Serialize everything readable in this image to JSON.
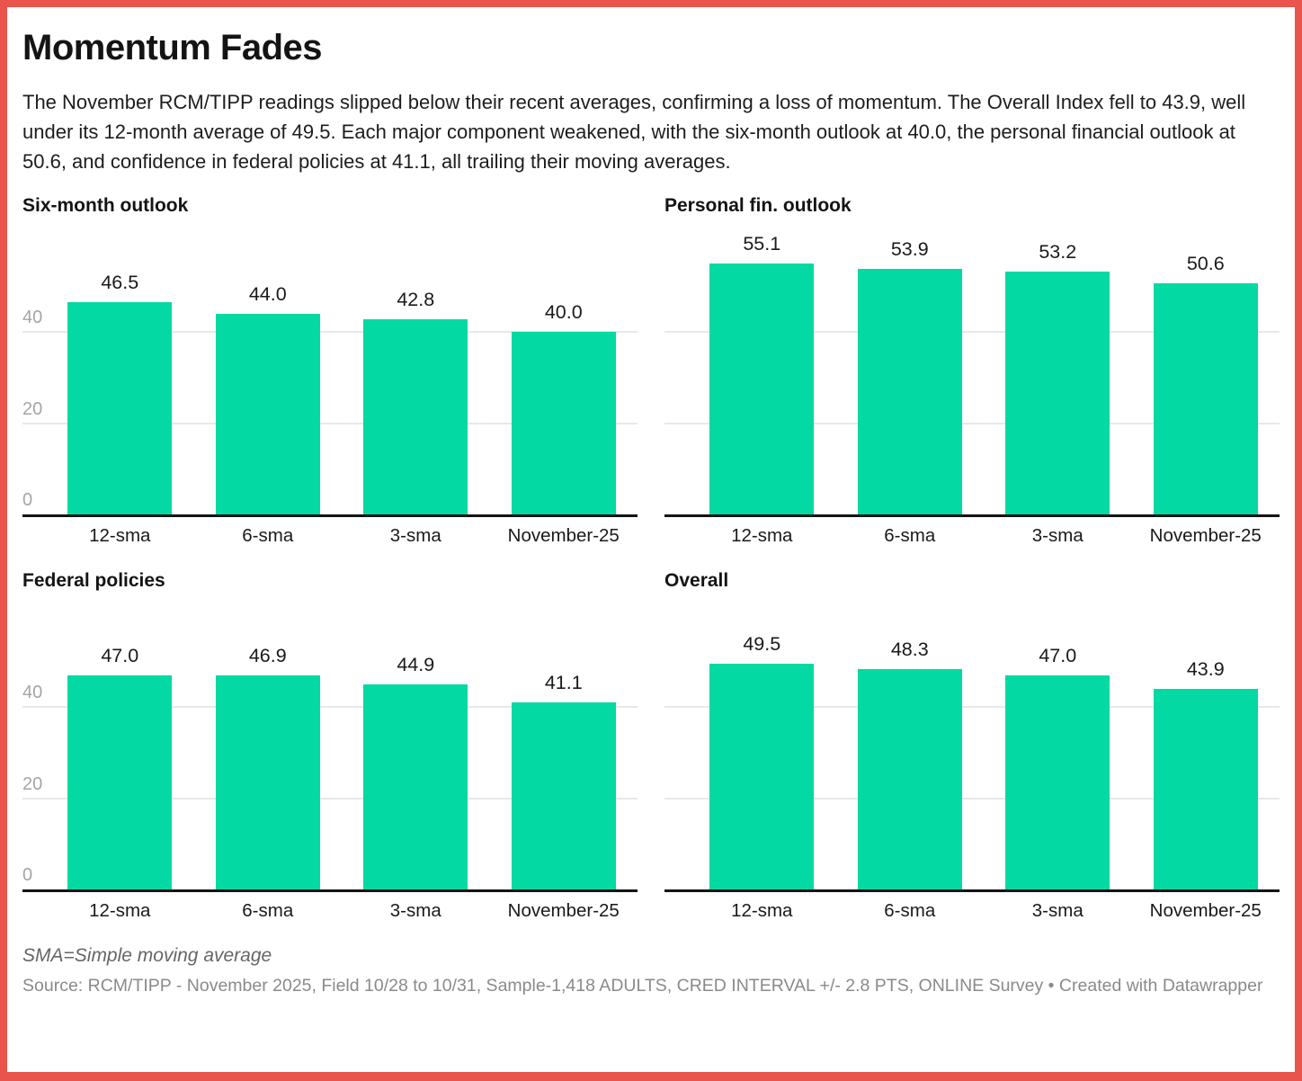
{
  "header": {
    "title": "Momentum Fades",
    "description": "The November RCM/TIPP readings slipped below their recent averages, confirming a loss of momentum. The Overall Index fell to 43.9, well under its 12-month average of 49.5. Each major component weakened, with the six-month outlook at 40.0, the personal financial outlook at 50.6, and confidence in federal policies at 41.1, all trailing their moving averages."
  },
  "chart_data": [
    {
      "type": "bar",
      "title": "Six-month outlook",
      "categories": [
        "12-sma",
        "6-sma",
        "3-sma",
        "November-25"
      ],
      "values": [
        46.5,
        44.0,
        42.8,
        40.0
      ],
      "labels": [
        "46.5",
        "44.0",
        "42.8",
        "40.0"
      ],
      "ylim": [
        0,
        63.5
      ],
      "yticks": [
        0,
        20,
        40
      ],
      "show_y_axis_labels": true,
      "grid": "horizontal",
      "legend": "none"
    },
    {
      "type": "bar",
      "title": "Personal fin. outlook",
      "categories": [
        "12-sma",
        "6-sma",
        "3-sma",
        "November-25"
      ],
      "values": [
        55.1,
        53.9,
        53.2,
        50.6
      ],
      "labels": [
        "55.1",
        "53.9",
        "53.2",
        "50.6"
      ],
      "ylim": [
        0,
        63.5
      ],
      "yticks": [
        0,
        20,
        40
      ],
      "show_y_axis_labels": false,
      "grid": "horizontal",
      "legend": "none"
    },
    {
      "type": "bar",
      "title": "Federal policies",
      "categories": [
        "12-sma",
        "6-sma",
        "3-sma",
        "November-25"
      ],
      "values": [
        47.0,
        46.9,
        44.9,
        41.1
      ],
      "labels": [
        "47.0",
        "46.9",
        "44.9",
        "41.1"
      ],
      "ylim": [
        0,
        63.5
      ],
      "yticks": [
        0,
        20,
        40
      ],
      "show_y_axis_labels": true,
      "grid": "horizontal",
      "legend": "none"
    },
    {
      "type": "bar",
      "title": "Overall",
      "categories": [
        "12-sma",
        "6-sma",
        "3-sma",
        "November-25"
      ],
      "values": [
        49.5,
        48.3,
        47.0,
        43.9
      ],
      "labels": [
        "49.5",
        "48.3",
        "47.0",
        "43.9"
      ],
      "ylim": [
        0,
        63.5
      ],
      "yticks": [
        0,
        20,
        40
      ],
      "show_y_axis_labels": false,
      "grid": "horizontal",
      "legend": "none"
    }
  ],
  "footer": {
    "note": "SMA=Simple moving average",
    "source": "Source: RCM/TIPP - November 2025, Field 10/28 to 10/31, Sample-1,418 ADULTS, CRED INTERVAL +/- 2.8 PTS, ONLINE Survey • Created with Datawrapper"
  },
  "colors": {
    "bar": "#03d9a2",
    "frame_border": "#e9544c",
    "gridline": "#e8e8e8",
    "baseline": "#131313",
    "y_tick_label": "#a5a5a5",
    "text": "#1a1a1a",
    "footnote": "#666666",
    "source": "#8a8a8a"
  }
}
